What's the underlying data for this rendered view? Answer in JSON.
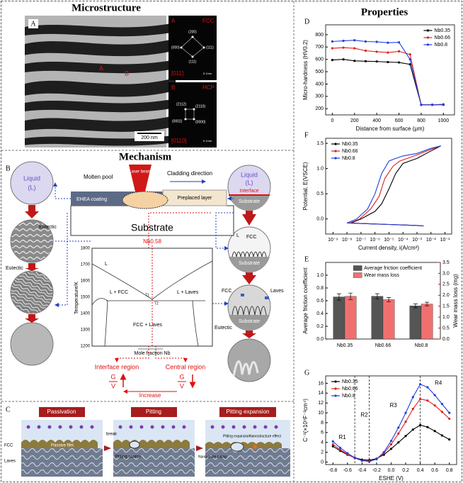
{
  "properties_title": "Properties",
  "microstructure": {
    "title": "Microstructure",
    "panel": "A",
    "points": [
      "A",
      "B"
    ],
    "scale_bar": "200 nm",
    "fcc": {
      "label": "A",
      "phase": "FCC",
      "spots": [
        "(200)",
        "(111)",
        "(000)",
        "(111)"
      ],
      "zone": "[011]",
      "scale": "5 1/nm"
    },
    "hcp": {
      "label": "B",
      "phase": "HCP",
      "spots": [
        "(2112)",
        "(2110)",
        "(0002)",
        "(0000)"
      ],
      "zone": "[0110]",
      "scale": "5 1/nm"
    }
  },
  "mechanism": {
    "title": "Mechanism",
    "panel": "B",
    "liquid_left": [
      "Liquid",
      "(L)"
    ],
    "eutectic": [
      "Eutectic",
      "Eutectic"
    ],
    "process": {
      "molten_pool": "Molten pool",
      "laser": "Laser beam",
      "direction": "Cladding direction",
      "preplaced": "Preplaced layer",
      "coating": "EHEA coating",
      "substrate": "Substrate"
    },
    "right": {
      "liquid": [
        "Liquid",
        "(L)"
      ],
      "interface": "Interface",
      "substrate": [
        "Substrate",
        "Substrate",
        "Substrate",
        "Substrate"
      ],
      "l": "L",
      "fcc": [
        "FCC",
        "FCC"
      ],
      "laves": "Laves",
      "eutectic": "Eutectic"
    },
    "phase_diagram": {
      "composition": "Nb0.58",
      "regions": [
        "L",
        "L + FCC",
        "L + Laves",
        "FCC + Laves"
      ],
      "ylabel": "Temperature/K",
      "yticks": [
        "1800",
        "1700",
        "1600",
        "1500",
        "1400",
        "1300",
        "1200"
      ],
      "xlabel": "Mole fraction Nb",
      "t": [
        "T1",
        "T2"
      ]
    },
    "regions": [
      "Interface region",
      "Central region"
    ],
    "gv": [
      [
        "G",
        "V"
      ],
      [
        "G",
        "V"
      ]
    ],
    "increase": "Increase"
  },
  "corrosion": {
    "panel": "C",
    "stages": [
      "Passivation",
      "Pitting",
      "Pitting expansion"
    ],
    "labels": {
      "fcc": "FCC",
      "laves": "Laves",
      "film": "Passive film",
      "break": "break",
      "source": "Pitting source",
      "nano": "Nano-scale pitting",
      "expansion": "Pitting expansion",
      "effect": "Nanostructure effect"
    }
  },
  "chart_data": [
    {
      "type": "line",
      "panel": "D",
      "markers": true,
      "legend": "upper right",
      "x": [
        0,
        100,
        200,
        300,
        400,
        500,
        600,
        700,
        800,
        900,
        1000
      ],
      "xlim": [
        -60,
        1100
      ],
      "xticks": [
        0,
        200,
        400,
        600,
        800,
        1000
      ],
      "ylim": [
        150,
        880
      ],
      "yticks": [
        200,
        300,
        400,
        500,
        600,
        700,
        800
      ],
      "xlabel": "Distance from surface (μm)",
      "ylabel": "Micro-hardness (HV0.2)",
      "series": [
        {
          "name": "Nb0.35",
          "color": "#000000",
          "values": [
            595,
            600,
            588,
            585,
            583,
            578,
            575,
            560,
            232,
            232,
            235
          ]
        },
        {
          "name": "Nb0.66",
          "color": "#e02020",
          "values": [
            690,
            695,
            690,
            670,
            662,
            655,
            665,
            640,
            232,
            232,
            232
          ]
        },
        {
          "name": "Nb0.8",
          "color": "#2040e0",
          "values": [
            745,
            750,
            755,
            745,
            742,
            735,
            738,
            600,
            232,
            232,
            232
          ]
        }
      ]
    },
    {
      "type": "line",
      "panel": "F",
      "xscale": "log",
      "legend": "upper left",
      "xlim": [
        3e-10,
        0.3
      ],
      "xticks": [
        {
          "value": 1e-09,
          "label": "10⁻⁹"
        },
        {
          "value": 1e-08,
          "label": "10⁻⁸"
        },
        {
          "value": 1e-07,
          "label": "10⁻⁷"
        },
        {
          "value": 1e-06,
          "label": "10⁻⁶"
        },
        {
          "value": 1e-05,
          "label": "10⁻⁵"
        },
        {
          "value": 0.0001,
          "label": "10⁻⁴"
        },
        {
          "value": 0.001,
          "label": "10⁻³"
        },
        {
          "value": 0.01,
          "label": "10⁻²"
        },
        {
          "value": 0.1,
          "label": "10⁻¹"
        }
      ],
      "ylim": [
        -0.3,
        1.6
      ],
      "yticks": [
        {
          "value": 0,
          "label": "0.0"
        },
        0.5,
        {
          "value": 1,
          "label": "1.0"
        },
        1.5
      ],
      "xlabel": "Current density, i(A/cm²)",
      "ylabel": "Potential, E(VSCE)",
      "series": [
        {
          "name": "Nb0.35",
          "color": "#000000",
          "x": [
            0.003,
            0.001,
            0.0001,
            1e-05,
            1e-06,
            1e-07,
            2e-08,
            1e-07,
            1e-06,
            3e-06,
            1e-05,
            3e-05,
            0.0001,
            0.0003,
            0.001,
            0.01,
            0.05
          ],
          "values": [
            -0.14,
            -0.13,
            -0.12,
            -0.11,
            -0.1,
            -0.09,
            -0.08,
            0.0,
            0.15,
            0.3,
            0.6,
            0.9,
            1.1,
            1.15,
            1.2,
            1.35,
            1.45
          ]
        },
        {
          "name": "Nb0.66",
          "color": "#e02020",
          "x": [
            0.003,
            0.001,
            0.0001,
            1e-05,
            1e-06,
            1e-07,
            1.5e-08,
            8e-08,
            5e-07,
            2e-06,
            5e-06,
            2e-05,
            6e-05,
            0.0002,
            0.001,
            0.01,
            0.05
          ],
          "values": [
            -0.14,
            -0.13,
            -0.12,
            -0.11,
            -0.1,
            -0.09,
            -0.08,
            0.0,
            0.2,
            0.45,
            0.8,
            1.05,
            1.15,
            1.2,
            1.27,
            1.38,
            1.45
          ]
        },
        {
          "name": "Nb0.8",
          "color": "#2040e0",
          "x": [
            0.003,
            0.001,
            0.0001,
            1e-05,
            1e-06,
            1e-07,
            1e-08,
            5e-08,
            3e-07,
            1e-06,
            3e-06,
            1e-05,
            3e-05,
            0.0001,
            0.001,
            0.01,
            0.05
          ],
          "values": [
            -0.14,
            -0.13,
            -0.12,
            -0.11,
            -0.1,
            -0.09,
            -0.08,
            0.0,
            0.2,
            0.5,
            0.9,
            1.15,
            1.2,
            1.25,
            1.3,
            1.4,
            1.45
          ]
        }
      ]
    },
    {
      "type": "bar",
      "panel": "E",
      "legend": "upper right",
      "categories": [
        "Nb0.35",
        "Nb0.66",
        "Nb0.8"
      ],
      "ylim": [
        0,
        1.2
      ],
      "yticks": [
        {
          "value": 0,
          "label": "0.0"
        },
        0.2,
        0.4,
        0.6,
        0.8,
        {
          "value": 1,
          "label": "1.0"
        }
      ],
      "y2lim": [
        0,
        3.5
      ],
      "y2ticks": [
        {
          "value": 0,
          "label": "0.0"
        },
        0.5,
        {
          "value": 1,
          "label": "1.0"
        },
        1.5,
        {
          "value": 2,
          "label": "2.0"
        },
        2.5,
        {
          "value": 3,
          "label": "3.0"
        },
        3.5
      ],
      "ylabel": "Average friction coefficient",
      "y2label": "Wear mass loss (mg)",
      "series": [
        {
          "name": "Average friction coefficient",
          "color": "#555555",
          "values": [
            0.66,
            0.67,
            0.52
          ],
          "errors": [
            0.05,
            0.04,
            0.03
          ]
        },
        {
          "name": "Wear mass loss",
          "color": "#f07070",
          "axis": "y2",
          "values": [
            1.95,
            1.8,
            1.6
          ],
          "errors": [
            0.15,
            0.1,
            0.08
          ]
        }
      ]
    },
    {
      "type": "line",
      "panel": "G",
      "markers": true,
      "legend": "upper left",
      "x": [
        -0.8,
        -0.7,
        -0.6,
        -0.5,
        -0.4,
        -0.3,
        -0.2,
        -0.1,
        0,
        0.1,
        0.2,
        0.3,
        0.4,
        0.5,
        0.6,
        0.7,
        0.8
      ],
      "xlim": [
        -0.9,
        0.9
      ],
      "xticks": [
        -0.8,
        -0.6,
        -0.4,
        -0.2,
        {
          "value": 0,
          "label": "0.0"
        },
        0.2,
        0.4,
        0.6,
        0.8
      ],
      "ylim": [
        -0.5,
        17.5
      ],
      "yticks": [
        0,
        2,
        4,
        6,
        8,
        10,
        12,
        14,
        16
      ],
      "xlabel": "ESHE (V)",
      "ylabel": "C⁻²(×10⁹F⁻²cm⁴)",
      "vlines": [
        -0.5,
        -0.3,
        0.4
      ],
      "annotations": [
        "R1",
        "R2",
        "R3",
        "R4"
      ],
      "series": [
        {
          "name": "Nb0.35",
          "color": "#000000",
          "values": [
            3.2,
            2.3,
            1.5,
            0.9,
            0.5,
            0.4,
            0.7,
            1.5,
            2.7,
            4.0,
            5.3,
            6.6,
            7.5,
            7.1,
            6.3,
            5.4,
            4.6
          ]
        },
        {
          "name": "Nb0.66",
          "color": "#e02020",
          "values": [
            3.6,
            2.5,
            1.6,
            0.8,
            0.3,
            0.2,
            0.6,
            1.8,
            3.6,
            5.8,
            8.2,
            10.8,
            12.8,
            12.5,
            11.5,
            10.2,
            8.8
          ]
        },
        {
          "name": "Nb0.8",
          "color": "#2040e0",
          "values": [
            4.2,
            2.9,
            1.8,
            0.9,
            0.3,
            0.1,
            0.6,
            2.0,
            4.3,
            7.0,
            10.0,
            13.2,
            15.8,
            15.2,
            13.6,
            11.8,
            10.0
          ]
        }
      ]
    }
  ]
}
